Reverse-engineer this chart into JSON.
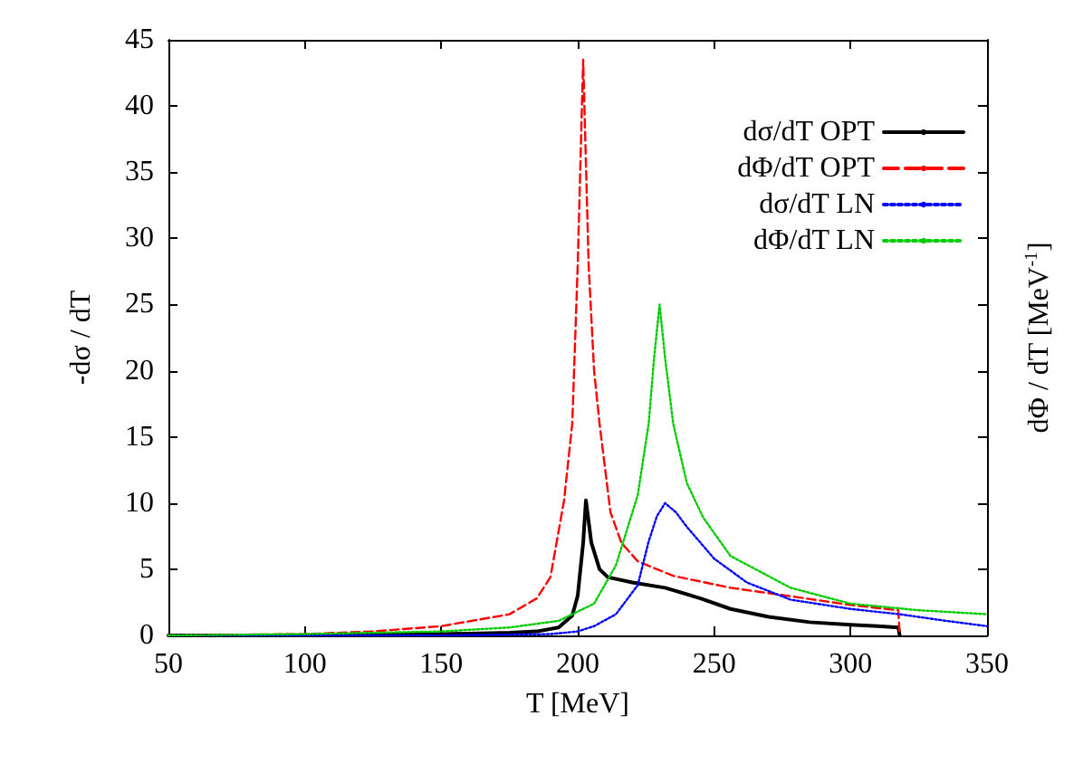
{
  "chart_data": {
    "type": "line",
    "xlabel": "T [MeV]",
    "ylabel": "-dσ / dT",
    "y2label": "dΦ / dT [MeV$^{-1}$]",
    "xlim": [
      50,
      350
    ],
    "xticks": [
      50,
      100,
      150,
      200,
      250,
      300,
      350
    ],
    "ylim": [
      0,
      45
    ],
    "yticks": [
      0,
      5,
      10,
      15,
      20,
      25,
      30,
      35,
      40,
      45
    ],
    "legend": "top right",
    "grid": false,
    "marker": "none",
    "series": [
      {
        "name": "dσ/dT OPT",
        "color": "#000000",
        "line_style": "solid",
        "x": [
          50,
          100,
          150,
          175,
          185,
          193,
          198,
          200,
          202,
          203,
          205,
          208,
          211,
          220,
          232,
          245,
          256,
          270,
          285,
          300,
          310,
          317.5,
          318
        ],
        "values": [
          0,
          0,
          0.1,
          0.2,
          0.3,
          0.6,
          1.5,
          3,
          7,
          10.2,
          7,
          5,
          4.4,
          4,
          3.6,
          2.8,
          2,
          1.4,
          1.0,
          0.8,
          0.7,
          0.6,
          0
        ]
      },
      {
        "name": "dΦ/dT OPT",
        "color": "#ff0000",
        "line_style": "dashed",
        "x": [
          50,
          100,
          125,
          150,
          175,
          185,
          190,
          195,
          198,
          200,
          202,
          204,
          206,
          208,
          212,
          216,
          222,
          235,
          256,
          280,
          300,
          317.5,
          318
        ],
        "values": [
          0,
          0.1,
          0.3,
          0.7,
          1.6,
          2.8,
          4.4,
          10.2,
          16,
          28,
          43.5,
          28,
          20,
          16,
          9.3,
          7,
          5.6,
          4.5,
          3.6,
          2.9,
          2.3,
          1.9,
          0
        ]
      },
      {
        "name": "dσ/dT LN",
        "color": "#0000ff",
        "line_style": "dotted",
        "x": [
          50,
          150,
          190,
          200,
          206,
          214,
          218,
          222,
          226,
          229,
          232,
          236,
          240,
          250,
          262,
          278,
          300,
          318,
          335,
          350
        ],
        "values": [
          0,
          0,
          0.1,
          0.3,
          0.7,
          1.6,
          2.7,
          3.8,
          7.1,
          9,
          10,
          9.3,
          8.2,
          5.8,
          4.0,
          2.7,
          2.0,
          1.6,
          1.1,
          0.7
        ]
      },
      {
        "name": "dΦ/dT LN",
        "color": "#00cc00",
        "line_style": "dotted",
        "x": [
          50,
          100,
          150,
          175,
          193,
          206,
          214,
          222,
          226,
          228,
          230,
          232,
          235,
          240,
          246,
          256,
          278,
          300,
          325,
          350
        ],
        "values": [
          0,
          0.1,
          0.3,
          0.6,
          1.1,
          2.4,
          5.3,
          10.6,
          16,
          21,
          25,
          21,
          16,
          11.5,
          8.9,
          6.0,
          3.6,
          2.4,
          1.9,
          1.6
        ]
      }
    ]
  }
}
